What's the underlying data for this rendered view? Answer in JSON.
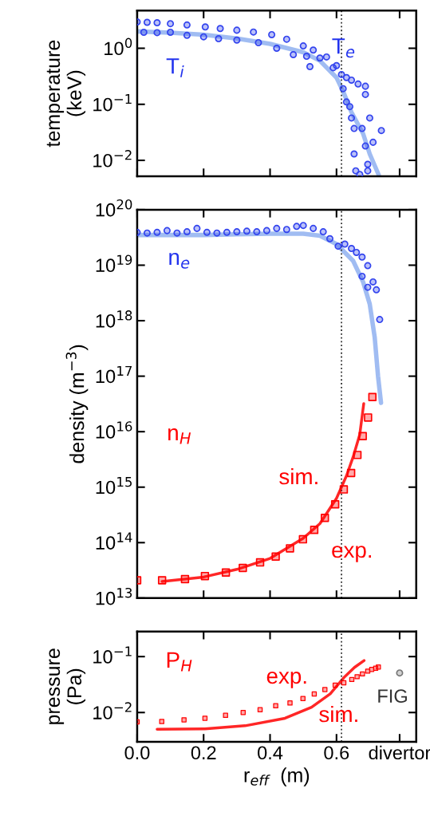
{
  "chart_data": [
    {
      "type": "scatter",
      "ylabel": "temperature\n(keV)",
      "log": true,
      "tick_labels": "y",
      "xlim": [
        0,
        0.84
      ],
      "xticks": [
        0,
        0.2,
        0.4,
        0.6,
        0.79
      ],
      "ylim": [
        0.0052,
        4.7
      ],
      "yticks": [
        {
          "value": 1,
          "label": "10$^{0}$"
        },
        {
          "value": 0.1,
          "label": "10$^{−1}$"
        },
        {
          "value": 0.01,
          "label": "10$^{−2}$"
        }
      ],
      "ref_lines": [
        {
          "axis": "x",
          "value": 0.615,
          "line_style": "dotted",
          "color": "#333333"
        }
      ],
      "annotations": [
        "T$_{i}$",
        "T$_{e}$"
      ],
      "series": [
        {
          "type": "line",
          "color": "#8fb0f0",
          "x": [
            0,
            0.1,
            0.2,
            0.3,
            0.4,
            0.5,
            0.55,
            0.6,
            0.62,
            0.645,
            0.68,
            0.7,
            0.727
          ],
          "values": [
            2.0,
            1.9,
            1.75,
            1.5,
            1.2,
            0.85,
            0.6,
            0.3,
            0.17,
            0.072,
            0.03,
            0.013,
            0.0055
          ]
        },
        {
          "type": "scatter",
          "marker": "circle",
          "color": "#3344ee",
          "x": [
            0.0,
            0.03,
            0.06,
            0.1,
            0.15,
            0.205,
            0.25,
            0.3,
            0.35,
            0.405,
            0.45,
            0.5,
            0.52,
            0.53,
            0.57,
            0.6,
            0.62,
            0.63,
            0.64,
            0.645,
            0.653,
            0.653,
            0.658,
            0.67,
            0.677,
            0.687,
            0.694,
            0.694,
            0.7,
            0.71,
            0.735
          ],
          "values": [
            2.95,
            2.9,
            2.85,
            2.75,
            2.6,
            2.4,
            2.25,
            2.1,
            1.95,
            1.75,
            1.45,
            1.1,
            0.47,
            0.93,
            0.7,
            0.49,
            0.19,
            0.11,
            0.091,
            0.057,
            0.037,
            0.013,
            0.0065,
            0.0056,
            0.037,
            0.018,
            0.0085,
            0.0065,
            0.057,
            0.021,
            0.034
          ]
        },
        {
          "type": "scatter",
          "marker": "circle",
          "color": "#3344ee",
          "x": [
            0.02,
            0.06,
            0.1,
            0.15,
            0.2,
            0.245,
            0.3,
            0.365,
            0.42,
            0.47,
            0.51,
            0.55,
            0.59,
            0.615,
            0.63,
            0.645,
            0.665,
            0.687,
            0.687
          ],
          "values": [
            1.93,
            1.9,
            1.93,
            1.7,
            1.6,
            1.48,
            1.4,
            1.26,
            1.0,
            0.77,
            0.72,
            0.67,
            0.45,
            0.34,
            0.3,
            0.27,
            0.23,
            0.21,
            0.15
          ]
        }
      ]
    },
    {
      "type": "scatter",
      "ylabel": "density (m$^{−3}$)",
      "log": true,
      "tick_labels": "y",
      "xlim": [
        0,
        0.84
      ],
      "xticks": [
        0,
        0.2,
        0.4,
        0.6,
        0.79
      ],
      "ylim": [
        10000000000000.0,
        1e+20
      ],
      "yticks": [
        {
          "value": 1e+20,
          "label": "10$^{20}$"
        },
        {
          "value": 1e+19,
          "label": "10$^{19}$"
        },
        {
          "value": 1e+18,
          "label": "10$^{18}$"
        },
        {
          "value": 1e+17,
          "label": "10$^{17}$"
        },
        {
          "value": 1e+16,
          "label": "10$^{16}$"
        },
        {
          "value": 1000000000000000.0,
          "label": "10$^{15}$"
        },
        {
          "value": 100000000000000.0,
          "label": "10$^{14}$"
        },
        {
          "value": 10000000000000.0,
          "label": "10$^{13}$"
        }
      ],
      "ref_lines": [
        {
          "axis": "x",
          "value": 0.615,
          "line_style": "dotted",
          "color": "#333333"
        }
      ],
      "annotations": [
        "n$_{e}$",
        "n$_{H}$",
        "sim.",
        "exp."
      ],
      "series": [
        {
          "type": "line",
          "color": "#8fb0f0",
          "x": [
            0,
            0.1,
            0.2,
            0.3,
            0.4,
            0.5,
            0.55,
            0.6,
            0.65,
            0.68,
            0.7,
            0.715,
            0.725,
            0.734
          ],
          "values": [
            3.5e+19,
            3.5e+19,
            3.5e+19,
            3.6e+19,
            3.7e+19,
            3.7e+19,
            3.4e+19,
            2.4e+19,
            1.2e+19,
            5e+18,
            2e+18,
            5e+17,
            1e+17,
            3.3e+16
          ]
        },
        {
          "type": "scatter",
          "marker": "circle",
          "color": "#3344ee",
          "x": [
            0.0,
            0.03,
            0.06,
            0.09,
            0.12,
            0.15,
            0.18,
            0.21,
            0.24,
            0.27,
            0.3,
            0.33,
            0.36,
            0.39,
            0.42,
            0.45,
            0.48,
            0.5,
            0.53,
            0.56,
            0.58,
            0.605,
            0.625,
            0.645,
            0.66,
            0.677,
            0.677,
            0.694,
            0.694,
            0.71,
            0.72,
            0.73
          ],
          "values": [
            3.9e+19,
            3.8e+19,
            3.9e+19,
            4.2e+19,
            3.8e+19,
            4e+19,
            4.6e+19,
            3.9e+19,
            3.8e+19,
            3.9e+19,
            4e+19,
            4.1e+19,
            4e+19,
            4.2e+19,
            4.6e+19,
            4.4e+19,
            5e+19,
            5.2e+19,
            4.6e+19,
            4e+19,
            3e+19,
            2.2e+19,
            2.4e+19,
            2e+19,
            1.7e+19,
            1.4e+19,
            6.3e+18,
            9.8e+18,
            4e+18,
            5e+18,
            3.6e+18,
            1.05e+18
          ]
        },
        {
          "type": "line",
          "color": "#ff0000",
          "x": [
            0.075,
            0.2,
            0.3,
            0.4,
            0.5,
            0.55,
            0.6,
            0.63,
            0.65,
            0.67,
            0.682
          ],
          "values": [
            20000000000000.0,
            24000000000000.0,
            33000000000000.0,
            52000000000000.0,
            120000000000000.0,
            220000000000000.0,
            630000000000000.0,
            1600000000000000.0,
            3500000000000000.0,
            8900000000000000.0,
            3.2e+16
          ]
        },
        {
          "type": "scatter",
          "marker": "square",
          "color": "#ff0000",
          "x": [
            0,
            0.075,
            0.144,
            0.204,
            0.267,
            0.318,
            0.37,
            0.417,
            0.46,
            0.499,
            0.533,
            0.565,
            0.596,
            0.622,
            0.644,
            0.663,
            0.679,
            0.695,
            0.708
          ],
          "values": [
            21000000000000.0,
            21000000000000.0,
            22000000000000.0,
            25000000000000.0,
            29000000000000.0,
            35000000000000.0,
            44000000000000.0,
            56000000000000.0,
            79000000000000.0,
            115000000000000.0,
            170000000000000.0,
            280000000000000.0,
            490000000000000.0,
            910000000000000.0,
            1800000000000000.0,
            3800000000000000.0,
            8300000000000000.0,
            1.8e+16,
            4.2e+16
          ]
        }
      ]
    },
    {
      "type": "scatter",
      "ylabel": "pressure\n(Pa)",
      "xlabel": "r$_{eff}$  (m)",
      "log": true,
      "xlim": [
        0,
        0.84
      ],
      "xticks": [
        {
          "value": 0,
          "label": "0.0"
        },
        {
          "value": 0.2,
          "label": "0.2"
        },
        {
          "value": 0.4,
          "label": "0.4"
        },
        {
          "value": 0.6,
          "label": "0.6"
        },
        {
          "value": 0.79,
          "label": "divertor"
        }
      ],
      "ylim": [
        0.003,
        0.28
      ],
      "yticks": [
        {
          "value": 0.1,
          "label": "10$^{−1}$"
        },
        {
          "value": 0.01,
          "label": "10$^{−2}$"
        }
      ],
      "ref_lines": [
        {
          "axis": "x",
          "value": 0.615,
          "line_style": "dotted",
          "color": "#333333"
        }
      ],
      "annotations": [
        "P$_{H}$",
        "exp.",
        "sim.",
        "FIG"
      ],
      "series": [
        {
          "type": "line",
          "color": "#ff0000",
          "x": [
            0.06,
            0.204,
            0.325,
            0.445,
            0.525,
            0.581,
            0.622,
            0.654,
            0.683
          ],
          "values": [
            0.005,
            0.0051,
            0.0058,
            0.0079,
            0.0124,
            0.0215,
            0.042,
            0.064,
            0.085
          ]
        },
        {
          "type": "scatter",
          "marker": "square",
          "color": "#ff0000",
          "x": [
            0,
            0.074,
            0.141,
            0.204,
            0.266,
            0.319,
            0.37,
            0.417,
            0.46,
            0.499,
            0.533,
            0.565,
            0.596,
            0.622,
            0.646,
            0.662,
            0.678,
            0.694,
            0.706,
            0.718,
            0.726
          ],
          "values": [
            0.0068,
            0.0069,
            0.0074,
            0.0079,
            0.0089,
            0.01,
            0.0112,
            0.0132,
            0.0148,
            0.0178,
            0.0214,
            0.0257,
            0.0309,
            0.0339,
            0.0389,
            0.0437,
            0.049,
            0.055,
            0.059,
            0.062,
            0.065
          ]
        },
        {
          "type": "scatter",
          "marker": "circle",
          "color": "#777777",
          "x": [
            0.79
          ],
          "values": [
            0.051
          ]
        }
      ]
    }
  ]
}
